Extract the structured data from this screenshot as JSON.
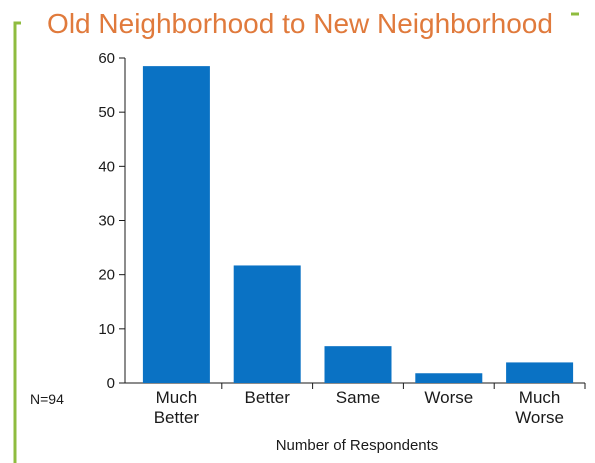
{
  "chart_data": {
    "type": "bar",
    "title": "Old Neighborhood to New Neighborhood",
    "categories": [
      [
        "Much",
        "Better"
      ],
      [
        "Better"
      ],
      [
        "Same"
      ],
      [
        "Worse"
      ],
      [
        "Much",
        "Worse"
      ]
    ],
    "values": [
      58.5,
      21.7,
      6.8,
      1.8,
      3.8
    ],
    "xlabel": "Number of Respondents",
    "ylabel": "",
    "ylim": [
      0,
      60
    ],
    "yticks": [
      0,
      10,
      20,
      30,
      40,
      50,
      60
    ],
    "note": "N=94",
    "bar_color": "#0a72c4",
    "frame_color": "#8fbc3f",
    "title_color": "#e07a3c",
    "grid": false,
    "legend": "none"
  }
}
